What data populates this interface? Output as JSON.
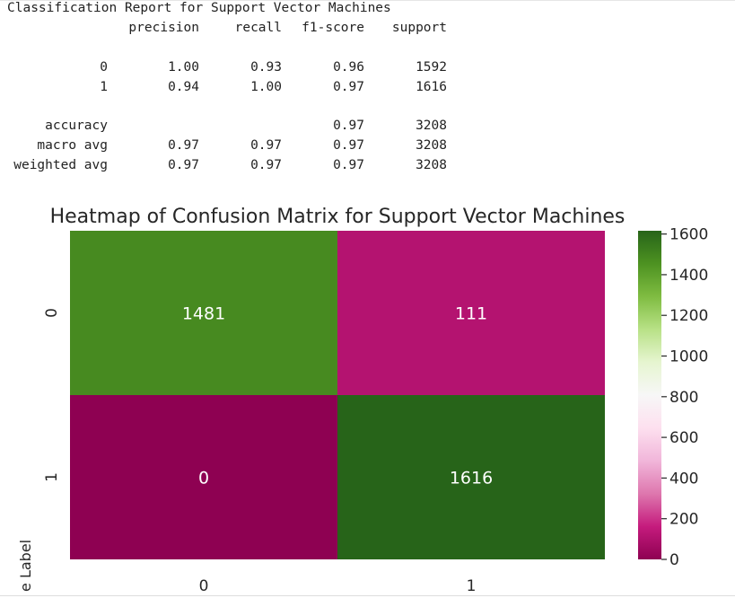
{
  "report": {
    "title": "Classification Report for Support Vector Machines",
    "headers": [
      "precision",
      "recall",
      "f1-score",
      "support"
    ],
    "rows": [
      {
        "label": "0",
        "precision": "1.00",
        "recall": "0.93",
        "f1": "0.96",
        "support": "1592"
      },
      {
        "label": "1",
        "precision": "0.94",
        "recall": "1.00",
        "f1": "0.97",
        "support": "1616"
      },
      {
        "label": "accuracy",
        "precision": "",
        "recall": "",
        "f1": "0.97",
        "support": "3208"
      },
      {
        "label": "macro avg",
        "precision": "0.97",
        "recall": "0.97",
        "f1": "0.97",
        "support": "3208"
      },
      {
        "label": "weighted avg",
        "precision": "0.97",
        "recall": "0.97",
        "f1": "0.97",
        "support": "3208"
      }
    ]
  },
  "chart_data": {
    "type": "heatmap",
    "title": "Heatmap of Confusion Matrix for Support Vector Machines",
    "ylabel": "True Label",
    "xlabel": "",
    "x_categories": [
      "0",
      "1"
    ],
    "y_categories": [
      "0",
      "1"
    ],
    "values": [
      [
        1481,
        111
      ],
      [
        0,
        1616
      ]
    ],
    "colormap": "PiYG",
    "colorbar": {
      "min": 0,
      "max": 1616,
      "ticks": [
        0,
        200,
        400,
        600,
        800,
        1000,
        1200,
        1400,
        1600
      ]
    },
    "colors": {
      "low": "#8e0152",
      "mid": "#f7f7f7",
      "high": "#276419"
    }
  }
}
